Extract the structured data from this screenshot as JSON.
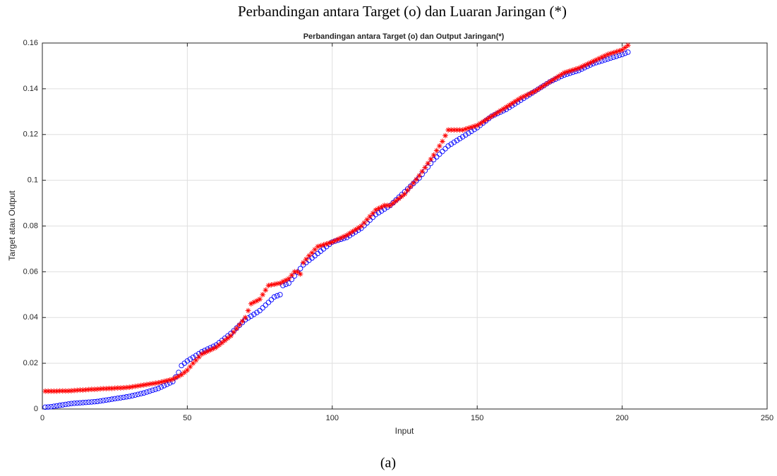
{
  "chart_data": {
    "type": "scatter",
    "title": "Perbandingan antara Target (o) dan Luaran Jaringan (*)",
    "subtitle": "Perbandingan antara Target (o) dan Output Jaringan(*)",
    "caption": "(a)",
    "x_label": "Input",
    "y_label": "Target atau Output",
    "xlim": [
      0,
      250
    ],
    "xticks": [
      0,
      50,
      100,
      150,
      200,
      250
    ],
    "ylim": [
      0,
      0.16
    ],
    "yticks": [
      0,
      0.02,
      0.04,
      0.06,
      0.08,
      0.1,
      0.12,
      0.14,
      0.16
    ],
    "grid": true,
    "x": [
      1,
      2,
      3,
      4,
      5,
      6,
      7,
      8,
      9,
      10,
      11,
      12,
      13,
      14,
      15,
      16,
      17,
      18,
      19,
      20,
      21,
      22,
      23,
      24,
      25,
      26,
      27,
      28,
      29,
      30,
      31,
      32,
      33,
      34,
      35,
      36,
      37,
      38,
      39,
      40,
      41,
      42,
      43,
      44,
      45,
      46,
      47,
      48,
      49,
      50,
      51,
      52,
      53,
      54,
      55,
      56,
      57,
      58,
      59,
      60,
      61,
      62,
      63,
      64,
      65,
      66,
      67,
      68,
      69,
      70,
      71,
      72,
      73,
      74,
      75,
      76,
      77,
      78,
      79,
      80,
      81,
      82,
      83,
      84,
      85,
      86,
      87,
      88,
      89,
      90,
      91,
      92,
      93,
      94,
      95,
      96,
      97,
      98,
      99,
      100,
      101,
      102,
      103,
      104,
      105,
      106,
      107,
      108,
      109,
      110,
      111,
      112,
      113,
      114,
      115,
      116,
      117,
      118,
      119,
      120,
      121,
      122,
      123,
      124,
      125,
      126,
      127,
      128,
      129,
      130,
      131,
      132,
      133,
      134,
      135,
      136,
      137,
      138,
      139,
      140,
      141,
      142,
      143,
      144,
      145,
      146,
      147,
      148,
      149,
      150,
      151,
      152,
      153,
      154,
      155,
      156,
      157,
      158,
      159,
      160,
      161,
      162,
      163,
      164,
      165,
      166,
      167,
      168,
      169,
      170,
      171,
      172,
      173,
      174,
      175,
      176,
      177,
      178,
      179,
      180,
      181,
      182,
      183,
      184,
      185,
      186,
      187,
      188,
      189,
      190,
      191,
      192,
      193,
      194,
      195,
      196,
      197,
      198,
      199,
      200,
      201,
      202
    ],
    "series": [
      {
        "color": "#0000ff",
        "marker": "o",
        "values": [
          0.0008,
          0.0009,
          0.001,
          0.0012,
          0.0014,
          0.0016,
          0.0018,
          0.002,
          0.0022,
          0.0024,
          0.0025,
          0.0026,
          0.0027,
          0.0028,
          0.0029,
          0.003,
          0.0031,
          0.0032,
          0.0033,
          0.0035,
          0.0037,
          0.0039,
          0.0041,
          0.0043,
          0.0045,
          0.0047,
          0.0049,
          0.0051,
          0.0053,
          0.0055,
          0.0058,
          0.0061,
          0.0064,
          0.0067,
          0.007,
          0.0074,
          0.0078,
          0.0082,
          0.0086,
          0.009,
          0.0096,
          0.0102,
          0.0108,
          0.0114,
          0.012,
          0.014,
          0.016,
          0.019,
          0.02,
          0.021,
          0.0218,
          0.0226,
          0.0234,
          0.0242,
          0.025,
          0.0256,
          0.0262,
          0.0268,
          0.0274,
          0.028,
          0.029,
          0.03,
          0.031,
          0.032,
          0.033,
          0.0342,
          0.0354,
          0.0366,
          0.0378,
          0.039,
          0.0398,
          0.0406,
          0.0414,
          0.0422,
          0.043,
          0.0442,
          0.0454,
          0.0466,
          0.0478,
          0.049,
          0.0495,
          0.05,
          0.054,
          0.0545,
          0.055,
          0.0566,
          0.0582,
          0.0598,
          0.0614,
          0.063,
          0.064,
          0.065,
          0.066,
          0.067,
          0.068,
          0.069,
          0.07,
          0.071,
          0.072,
          0.073,
          0.0734,
          0.0738,
          0.0742,
          0.0746,
          0.075,
          0.0758,
          0.0766,
          0.0774,
          0.0782,
          0.079,
          0.0802,
          0.0814,
          0.0826,
          0.0838,
          0.085,
          0.0858,
          0.0866,
          0.0874,
          0.0882,
          0.089,
          0.0902,
          0.0914,
          0.0926,
          0.0938,
          0.095,
          0.0962,
          0.0974,
          0.0986,
          0.0998,
          0.101,
          0.1026,
          0.1042,
          0.1058,
          0.1074,
          0.109,
          0.1102,
          0.1114,
          0.1126,
          0.1138,
          0.115,
          0.1158,
          0.1166,
          0.1174,
          0.1182,
          0.119,
          0.1198,
          0.1206,
          0.1214,
          0.1222,
          0.123,
          0.124,
          0.125,
          0.126,
          0.127,
          0.128,
          0.1286,
          0.1292,
          0.1298,
          0.1304,
          0.131,
          0.1318,
          0.1326,
          0.1334,
          0.1342,
          0.135,
          0.1358,
          0.1366,
          0.1374,
          0.1382,
          0.139,
          0.1398,
          0.1406,
          0.1414,
          0.1422,
          0.143,
          0.1436,
          0.1442,
          0.1448,
          0.1454,
          0.146,
          0.1464,
          0.1468,
          0.1472,
          0.1476,
          0.148,
          0.1486,
          0.1492,
          0.1498,
          0.1504,
          0.151,
          0.1514,
          0.1518,
          0.1522,
          0.1526,
          0.153,
          0.1534,
          0.1538,
          0.1542,
          0.1546,
          0.155,
          0.1555,
          0.156
        ]
      },
      {
        "color": "#ff0000",
        "marker": "*",
        "values": [
          0.0078,
          0.0078,
          0.0078,
          0.0078,
          0.0078,
          0.0079,
          0.0079,
          0.0079,
          0.0079,
          0.008,
          0.0081,
          0.0082,
          0.0083,
          0.0083,
          0.0084,
          0.0085,
          0.0086,
          0.0086,
          0.0087,
          0.0088,
          0.0089,
          0.0089,
          0.009,
          0.009,
          0.0091,
          0.0092,
          0.0092,
          0.0093,
          0.0094,
          0.0095,
          0.0097,
          0.0099,
          0.0101,
          0.0103,
          0.0105,
          0.0107,
          0.0109,
          0.0111,
          0.0113,
          0.0115,
          0.0118,
          0.0121,
          0.0124,
          0.0127,
          0.013,
          0.0137,
          0.0143,
          0.015,
          0.016,
          0.017,
          0.0185,
          0.02,
          0.0213,
          0.0227,
          0.024,
          0.0246,
          0.0252,
          0.0258,
          0.0264,
          0.027,
          0.028,
          0.029,
          0.03,
          0.031,
          0.032,
          0.0336,
          0.0352,
          0.0368,
          0.0384,
          0.04,
          0.043,
          0.046,
          0.0467,
          0.0473,
          0.048,
          0.05,
          0.052,
          0.054,
          0.0543,
          0.0545,
          0.0548,
          0.055,
          0.0557,
          0.0563,
          0.057,
          0.0585,
          0.06,
          0.06,
          0.059,
          0.064,
          0.0655,
          0.067,
          0.0683,
          0.0697,
          0.071,
          0.0714,
          0.0718,
          0.0722,
          0.0726,
          0.073,
          0.0736,
          0.0742,
          0.0748,
          0.0754,
          0.076,
          0.0768,
          0.0776,
          0.0784,
          0.0792,
          0.08,
          0.0814,
          0.0828,
          0.0842,
          0.0856,
          0.087,
          0.0877,
          0.0883,
          0.089,
          0.089,
          0.089,
          0.09,
          0.091,
          0.092,
          0.093,
          0.094,
          0.0956,
          0.0972,
          0.0988,
          0.1004,
          0.102,
          0.1038,
          0.1056,
          0.1074,
          0.1092,
          0.111,
          0.113,
          0.115,
          0.117,
          0.1195,
          0.122,
          0.122,
          0.122,
          0.122,
          0.122,
          0.122,
          0.1224,
          0.1228,
          0.1232,
          0.1236,
          0.124,
          0.1248,
          0.1256,
          0.1264,
          0.1272,
          0.128,
          0.1288,
          0.1296,
          0.1304,
          0.1312,
          0.132,
          0.1328,
          0.1336,
          0.1344,
          0.1352,
          0.136,
          0.1366,
          0.1372,
          0.1378,
          0.1384,
          0.139,
          0.1398,
          0.1406,
          0.1414,
          0.1422,
          0.143,
          0.1438,
          0.1446,
          0.1454,
          0.1462,
          0.147,
          0.1474,
          0.1478,
          0.1482,
          0.1486,
          0.149,
          0.1496,
          0.1502,
          0.1508,
          0.1514,
          0.152,
          0.1526,
          0.1532,
          0.1538,
          0.1544,
          0.155,
          0.1554,
          0.1558,
          0.1562,
          0.1566,
          0.157,
          0.158,
          0.159
        ]
      }
    ]
  }
}
